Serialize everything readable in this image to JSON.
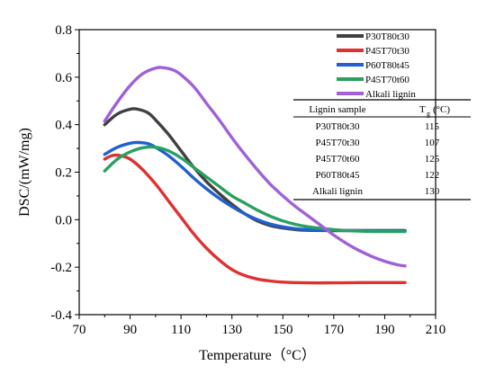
{
  "chart_data": {
    "type": "line",
    "title": "",
    "xlabel": "Temperature（°C）",
    "ylabel": "DSC/(mW/mg)",
    "xlim": [
      70,
      210
    ],
    "ylim": [
      -0.4,
      0.8
    ],
    "xticks": [
      70,
      90,
      110,
      130,
      150,
      170,
      190,
      210
    ],
    "xtick_labels": [
      "70",
      "90",
      "110",
      "130",
      "150",
      "170",
      "190",
      "210"
    ],
    "yticks": [
      -0.4,
      -0.2,
      0.0,
      0.2,
      0.4,
      0.6,
      0.8
    ],
    "ytick_labels": [
      "-0.4",
      "-0.2",
      "0.0",
      "0.2",
      "0.4",
      "0.6",
      "0.8"
    ],
    "grid": false,
    "legend_position": "top-right",
    "series": [
      {
        "name": "P30T80t30",
        "color": "#404040",
        "x": [
          80,
          85,
          90,
          93,
          97,
          100,
          105,
          110,
          115,
          120,
          125,
          130,
          135,
          140,
          145,
          150,
          155,
          160,
          170,
          180,
          190,
          198
        ],
        "y": [
          0.4,
          0.445,
          0.465,
          0.465,
          0.45,
          0.42,
          0.36,
          0.29,
          0.22,
          0.16,
          0.11,
          0.065,
          0.025,
          -0.005,
          -0.025,
          -0.035,
          -0.042,
          -0.045,
          -0.046,
          -0.046,
          -0.046,
          -0.046
        ]
      },
      {
        "name": "P45T70t30",
        "color": "#e03030",
        "x": [
          80,
          83,
          86,
          90,
          95,
          100,
          105,
          110,
          115,
          120,
          125,
          130,
          135,
          140,
          145,
          150,
          160,
          170,
          180,
          190,
          198
        ],
        "y": [
          0.255,
          0.27,
          0.27,
          0.255,
          0.21,
          0.15,
          0.08,
          0.01,
          -0.06,
          -0.12,
          -0.17,
          -0.21,
          -0.235,
          -0.25,
          -0.258,
          -0.263,
          -0.266,
          -0.266,
          -0.265,
          -0.265,
          -0.265
        ]
      },
      {
        "name": "P60T80t45",
        "color": "#2060d0",
        "x": [
          80,
          85,
          90,
          93,
          97,
          100,
          105,
          110,
          115,
          120,
          125,
          130,
          135,
          140,
          145,
          150,
          155,
          160,
          170,
          180,
          190,
          198
        ],
        "y": [
          0.275,
          0.305,
          0.322,
          0.325,
          0.32,
          0.305,
          0.27,
          0.225,
          0.175,
          0.13,
          0.09,
          0.055,
          0.025,
          0.0,
          -0.018,
          -0.03,
          -0.038,
          -0.042,
          -0.045,
          -0.046,
          -0.046,
          -0.046
        ]
      },
      {
        "name": "P45T70t60",
        "color": "#2aa060",
        "x": [
          80,
          85,
          90,
          95,
          100,
          105,
          110,
          115,
          120,
          125,
          130,
          135,
          140,
          145,
          150,
          155,
          160,
          170,
          180,
          190,
          198
        ],
        "y": [
          0.205,
          0.255,
          0.285,
          0.303,
          0.305,
          0.29,
          0.26,
          0.22,
          0.18,
          0.14,
          0.1,
          0.07,
          0.04,
          0.015,
          -0.005,
          -0.02,
          -0.03,
          -0.042,
          -0.048,
          -0.05,
          -0.05
        ]
      },
      {
        "name": "Alkali lignin",
        "color": "#a060d8",
        "x": [
          80,
          85,
          90,
          95,
          100,
          103,
          107,
          110,
          115,
          120,
          125,
          130,
          135,
          140,
          145,
          150,
          155,
          160,
          165,
          170,
          175,
          180,
          185,
          190,
          195,
          198
        ],
        "y": [
          0.415,
          0.495,
          0.565,
          0.615,
          0.638,
          0.64,
          0.63,
          0.61,
          0.56,
          0.49,
          0.42,
          0.345,
          0.275,
          0.21,
          0.15,
          0.1,
          0.055,
          0.015,
          -0.025,
          -0.065,
          -0.1,
          -0.13,
          -0.155,
          -0.175,
          -0.19,
          -0.195
        ]
      }
    ],
    "table": {
      "headers": [
        "Lignin sample",
        "T",
        "g",
        "(°C)"
      ],
      "rows": [
        [
          "P30T80t30",
          "115"
        ],
        [
          "P45T70t30",
          "107"
        ],
        [
          "P45T70t60",
          "125"
        ],
        [
          "P60T80t45",
          "122"
        ],
        [
          "Alkali lignin",
          "130"
        ]
      ]
    }
  }
}
